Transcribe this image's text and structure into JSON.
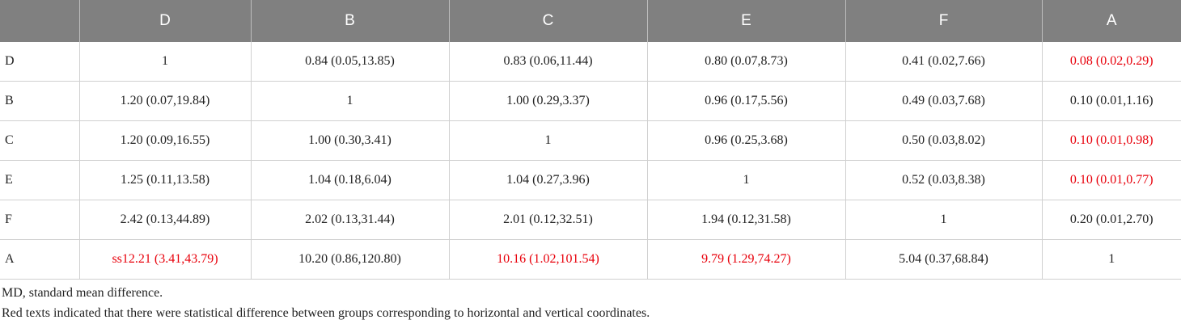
{
  "table": {
    "header": [
      "",
      "D",
      "B",
      "C",
      "E",
      "F",
      "A"
    ],
    "rows": [
      [
        "D",
        "1",
        "0.84 (0.05,13.85)",
        "0.83 (0.06,11.44)",
        "0.80 (0.07,8.73)",
        "0.41 (0.02,7.66)",
        {
          "text": "0.08 (0.02,0.29)",
          "color": "#e8000b"
        }
      ],
      [
        "B",
        "1.20 (0.07,19.84)",
        "1",
        "1.00 (0.29,3.37)",
        "0.96 (0.17,5.56)",
        "0.49 (0.03,7.68)",
        "0.10 (0.01,1.16)"
      ],
      [
        "C",
        "1.20 (0.09,16.55)",
        "1.00 (0.30,3.41)",
        "1",
        "0.96 (0.25,3.68)",
        "0.50 (0.03,8.02)",
        {
          "text": "0.10 (0.01,0.98)",
          "color": "#e8000b"
        }
      ],
      [
        "E",
        "1.25 (0.11,13.58)",
        "1.04 (0.18,6.04)",
        "1.04 (0.27,3.96)",
        "1",
        "0.52 (0.03,8.38)",
        {
          "text": "0.10 (0.01,0.77)",
          "color": "#e8000b"
        }
      ],
      [
        "F",
        "2.42 (0.13,44.89)",
        "2.02 (0.13,31.44)",
        "2.01 (0.12,32.51)",
        "1.94 (0.12,31.58)",
        "1",
        "0.20 (0.01,2.70)"
      ],
      [
        "A",
        {
          "text": "ss12.21 (3.41,43.79)",
          "color": "#e8000b"
        },
        "10.20 (0.86,120.80)",
        {
          "text": "10.16 (1.02,101.54)",
          "color": "#e8000b"
        },
        {
          "text": "9.79 (1.29,74.27)",
          "color": "#e8000b"
        },
        "5.04 (0.37,68.84)",
        "1"
      ]
    ]
  },
  "footnotes": [
    "MD, standard mean difference.",
    "Red texts indicated that there were statistical difference between groups corresponding to horizontal and vertical coordinates."
  ]
}
